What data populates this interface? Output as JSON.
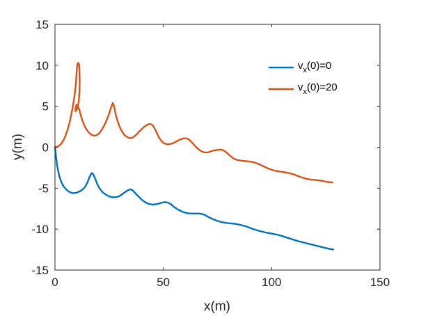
{
  "chart_data": {
    "type": "line",
    "xlabel": "x(m)",
    "ylabel": "y(m)",
    "xlim": [
      0,
      150
    ],
    "ylim": [
      -15,
      15
    ],
    "xticks": [
      "0",
      "50",
      "100",
      "150"
    ],
    "yticks": [
      "-15",
      "-10",
      "-5",
      "0",
      "5",
      "10",
      "15"
    ],
    "grid": false,
    "legend_position": "top-right",
    "series": [
      {
        "name_main": "v",
        "name_sub": "x",
        "name_rest": "(0)=0",
        "color": "#0072BD",
        "points": [
          [
            0,
            0
          ],
          [
            0.5,
            -1.2
          ],
          [
            1,
            -2.3
          ],
          [
            2,
            -3.5
          ],
          [
            3,
            -4.3
          ],
          [
            4,
            -4.8
          ],
          [
            5,
            -5.1
          ],
          [
            6,
            -5.35
          ],
          [
            7,
            -5.5
          ],
          [
            8,
            -5.6
          ],
          [
            9,
            -5.6
          ],
          [
            10,
            -5.55
          ],
          [
            11,
            -5.45
          ],
          [
            12,
            -5.3
          ],
          [
            13,
            -5.1
          ],
          [
            14,
            -4.8
          ],
          [
            15,
            -4.3
          ],
          [
            16,
            -3.6
          ],
          [
            17,
            -3.15
          ],
          [
            17.7,
            -3.3
          ],
          [
            18.5,
            -3.8
          ],
          [
            19.5,
            -4.5
          ],
          [
            20.5,
            -5.0
          ],
          [
            22,
            -5.5
          ],
          [
            23.5,
            -5.8
          ],
          [
            25,
            -6.0
          ],
          [
            26.5,
            -6.1
          ],
          [
            28,
            -6.1
          ],
          [
            29.5,
            -6.0
          ],
          [
            31,
            -5.75
          ],
          [
            32.5,
            -5.45
          ],
          [
            34,
            -5.2
          ],
          [
            35,
            -5.15
          ],
          [
            36,
            -5.3
          ],
          [
            37,
            -5.6
          ],
          [
            38.5,
            -6.0
          ],
          [
            40,
            -6.4
          ],
          [
            41.5,
            -6.7
          ],
          [
            43,
            -6.9
          ],
          [
            45,
            -7.0
          ],
          [
            47,
            -6.95
          ],
          [
            49,
            -6.8
          ],
          [
            50.5,
            -6.7
          ],
          [
            52,
            -6.75
          ],
          [
            53.5,
            -6.95
          ],
          [
            55,
            -7.3
          ],
          [
            57,
            -7.65
          ],
          [
            59,
            -7.9
          ],
          [
            61,
            -8.05
          ],
          [
            63,
            -8.1
          ],
          [
            65,
            -8.1
          ],
          [
            67,
            -8.1
          ],
          [
            69,
            -8.25
          ],
          [
            71,
            -8.55
          ],
          [
            73,
            -8.8
          ],
          [
            75,
            -9.0
          ],
          [
            77,
            -9.15
          ],
          [
            79,
            -9.25
          ],
          [
            81,
            -9.3
          ],
          [
            83,
            -9.35
          ],
          [
            85,
            -9.45
          ],
          [
            88,
            -9.65
          ],
          [
            91,
            -9.95
          ],
          [
            94,
            -10.2
          ],
          [
            97,
            -10.4
          ],
          [
            100,
            -10.55
          ],
          [
            103,
            -10.7
          ],
          [
            106,
            -10.95
          ],
          [
            109,
            -11.2
          ],
          [
            112,
            -11.45
          ],
          [
            115,
            -11.65
          ],
          [
            118,
            -11.85
          ],
          [
            121,
            -12.05
          ],
          [
            124,
            -12.25
          ],
          [
            126.5,
            -12.4
          ],
          [
            128.5,
            -12.5
          ]
        ]
      },
      {
        "name_main": "v",
        "name_sub": "x",
        "name_rest": "(0)=20",
        "color": "#D95319",
        "points": [
          [
            0,
            0
          ],
          [
            1,
            0.05
          ],
          [
            2,
            0.2
          ],
          [
            3,
            0.45
          ],
          [
            4,
            0.9
          ],
          [
            5,
            1.5
          ],
          [
            6,
            2.3
          ],
          [
            7,
            3.3
          ],
          [
            8,
            4.6
          ],
          [
            9,
            6.2
          ],
          [
            9.6,
            7.6
          ],
          [
            9.9,
            8.8
          ],
          [
            10.2,
            9.9
          ],
          [
            10.5,
            10.25
          ],
          [
            10.8,
            10.3
          ],
          [
            11.1,
            10.1
          ],
          [
            11.35,
            9.0
          ],
          [
            11.4,
            8.0
          ],
          [
            11.3,
            6.8
          ],
          [
            11.0,
            5.6
          ],
          [
            10.5,
            4.9
          ],
          [
            9.9,
            4.5
          ],
          [
            9.5,
            4.4
          ],
          [
            9.4,
            4.6
          ],
          [
            9.6,
            5.0
          ],
          [
            10.0,
            5.2
          ],
          [
            10.5,
            5.1
          ],
          [
            11.2,
            4.6
          ],
          [
            12,
            3.8
          ],
          [
            13,
            3.0
          ],
          [
            14,
            2.4
          ],
          [
            15,
            2.0
          ],
          [
            16,
            1.7
          ],
          [
            17,
            1.5
          ],
          [
            18,
            1.4
          ],
          [
            19,
            1.45
          ],
          [
            20,
            1.6
          ],
          [
            21,
            1.9
          ],
          [
            22,
            2.3
          ],
          [
            23,
            2.8
          ],
          [
            24,
            3.4
          ],
          [
            25,
            4.1
          ],
          [
            26,
            4.9
          ],
          [
            26.7,
            5.4
          ],
          [
            27.3,
            5.0
          ],
          [
            28,
            4.0
          ],
          [
            29,
            3.1
          ],
          [
            30,
            2.4
          ],
          [
            31,
            1.9
          ],
          [
            32,
            1.5
          ],
          [
            33,
            1.3
          ],
          [
            34,
            1.15
          ],
          [
            35,
            1.1
          ],
          [
            36,
            1.2
          ],
          [
            37,
            1.4
          ],
          [
            38,
            1.65
          ],
          [
            39,
            1.95
          ],
          [
            40,
            2.2
          ],
          [
            41,
            2.45
          ],
          [
            42,
            2.65
          ],
          [
            43,
            2.8
          ],
          [
            44,
            2.85
          ],
          [
            45,
            2.7
          ],
          [
            46,
            2.3
          ],
          [
            47,
            1.75
          ],
          [
            48,
            1.2
          ],
          [
            49,
            0.8
          ],
          [
            50,
            0.55
          ],
          [
            51,
            0.4
          ],
          [
            52,
            0.35
          ],
          [
            53,
            0.38
          ],
          [
            54,
            0.45
          ],
          [
            55,
            0.55
          ],
          [
            56,
            0.7
          ],
          [
            57,
            0.85
          ],
          [
            58,
            0.95
          ],
          [
            59,
            1.05
          ],
          [
            60,
            1.1
          ],
          [
            61,
            1.05
          ],
          [
            62,
            0.9
          ],
          [
            63,
            0.65
          ],
          [
            64,
            0.35
          ],
          [
            65,
            0.05
          ],
          [
            66,
            -0.2
          ],
          [
            67,
            -0.4
          ],
          [
            68,
            -0.55
          ],
          [
            69,
            -0.62
          ],
          [
            70,
            -0.65
          ],
          [
            71,
            -0.6
          ],
          [
            72,
            -0.5
          ],
          [
            73,
            -0.42
          ],
          [
            74,
            -0.36
          ],
          [
            75,
            -0.32
          ],
          [
            76,
            -0.3
          ],
          [
            77,
            -0.32
          ],
          [
            78,
            -0.42
          ],
          [
            79,
            -0.6
          ],
          [
            80,
            -0.85
          ],
          [
            81,
            -1.1
          ],
          [
            82,
            -1.3
          ],
          [
            83,
            -1.45
          ],
          [
            84,
            -1.55
          ],
          [
            86,
            -1.65
          ],
          [
            88,
            -1.7
          ],
          [
            90,
            -1.75
          ],
          [
            92,
            -1.85
          ],
          [
            94,
            -2.05
          ],
          [
            96,
            -2.3
          ],
          [
            98,
            -2.55
          ],
          [
            100,
            -2.75
          ],
          [
            102,
            -2.9
          ],
          [
            104,
            -2.98
          ],
          [
            106,
            -3.05
          ],
          [
            108,
            -3.15
          ],
          [
            110,
            -3.3
          ],
          [
            112,
            -3.5
          ],
          [
            114,
            -3.7
          ],
          [
            116,
            -3.85
          ],
          [
            118,
            -3.95
          ],
          [
            120,
            -4.0
          ],
          [
            122,
            -4.05
          ],
          [
            124,
            -4.15
          ],
          [
            126,
            -4.25
          ],
          [
            128,
            -4.3
          ]
        ]
      }
    ]
  }
}
